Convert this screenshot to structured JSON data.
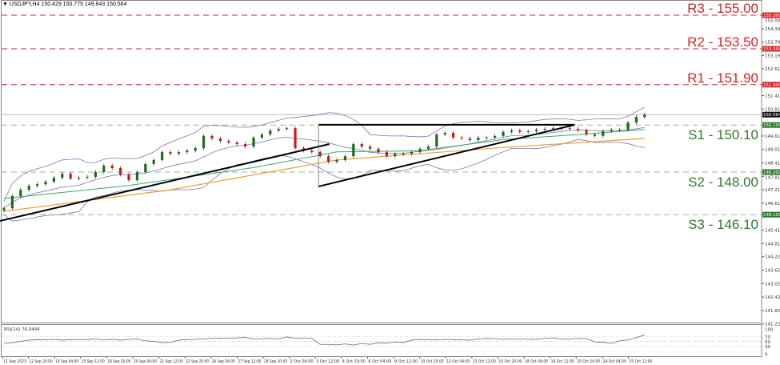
{
  "header": {
    "symbol_label": "▼ USDJPY,H4 150.429 150.775 149.843 150.564"
  },
  "chart_data": {
    "type": "candlestick",
    "symbol": "USDJPY",
    "timeframe": "H4",
    "ohlc_last": {
      "open": 150.429,
      "high": 150.775,
      "low": 149.843,
      "close": 150.564
    },
    "ylim": [
      140.9,
      155.7
    ],
    "y_ticks": [
      "155.000",
      "154.395",
      "153.795",
      "153.195",
      "152.610",
      "151.410",
      "150.810",
      "149.610",
      "149.010",
      "148.410",
      "147.810",
      "147.210",
      "146.610",
      "145.410",
      "144.810",
      "144.225",
      "143.625",
      "143.025",
      "142.425",
      "141.825",
      "141.225"
    ],
    "x_ticks": [
      "11 Sep 2023",
      "12 Sep 20:00",
      "14 Sep 04:00",
      "15 Sep 12:00",
      "18 Sep 20:00",
      "20 Sep 04:00",
      "21 Sep 12:00",
      "22 Sep 20:00",
      "26 Sep 04:00",
      "27 Sep 12:00",
      "28 Sep 20:00",
      "2 Oct 04:00",
      "3 Oct 12:00",
      "4 Oct 20:00",
      "6 Oct 04:00",
      "9 Oct 12:00",
      "10 Oct 20:00",
      "12 Oct 04:00",
      "13 Oct 12:00",
      "16 Oct 20:00",
      "18 Oct 04:00",
      "19 Oct 12:00",
      "20 Oct 20:00",
      "24 Oct 04:00",
      "25 Oct 12:00"
    ],
    "closes": [
      146.39,
      146.93,
      147.21,
      147.39,
      147.46,
      147.57,
      147.75,
      147.93,
      147.71,
      147.75,
      147.79,
      148.0,
      148.29,
      148.18,
      147.89,
      147.64,
      148.0,
      148.36,
      148.54,
      148.89,
      148.82,
      148.89,
      148.96,
      149.07,
      149.61,
      149.5,
      149.39,
      149.32,
      149.25,
      149.14,
      149.54,
      149.68,
      149.86,
      149.93,
      149.96,
      149.07,
      148.96,
      148.89,
      148.71,
      148.46,
      148.54,
      148.71,
      149.25,
      149.14,
      149.04,
      148.89,
      148.71,
      148.82,
      148.82,
      148.89,
      149.04,
      149.14,
      149.68,
      149.75,
      149.54,
      149.5,
      149.43,
      149.54,
      149.54,
      149.61,
      149.79,
      149.86,
      149.79,
      149.82,
      149.89,
      149.93,
      149.96,
      149.96,
      149.93,
      149.86,
      149.68,
      149.61,
      149.82,
      149.89,
      149.89,
      150.21,
      150.46,
      150.564
    ],
    "ma_green": [
      [
        0,
        146.82
      ],
      [
        15,
        147.4
      ],
      [
        30,
        148.2
      ],
      [
        40,
        148.9
      ],
      [
        50,
        148.95
      ],
      [
        60,
        149.45
      ],
      [
        70,
        149.7
      ],
      [
        77,
        149.9
      ]
    ],
    "ma_orange": [
      [
        0,
        146.25
      ],
      [
        20,
        147.21
      ],
      [
        40,
        148.54
      ],
      [
        60,
        149.1
      ],
      [
        77,
        149.5
      ]
    ],
    "trendlines": [
      {
        "from": [
          -0.5,
          145.82
        ],
        "to": [
          39.1,
          149.25
        ]
      },
      {
        "from": [
          37.8,
          150.11
        ],
        "to": [
          68.6,
          150.11
        ]
      },
      {
        "from": [
          37.8,
          150.11
        ],
        "to": [
          37.8,
          147.36
        ]
      },
      {
        "from": [
          37.8,
          147.36
        ],
        "to": [
          68.6,
          150.11
        ]
      }
    ],
    "levels": [
      {
        "name": "R3",
        "value": 155.0,
        "label": "R3 - 155.00",
        "tag": "155.000",
        "kind": "resistance"
      },
      {
        "name": "R2",
        "value": 153.5,
        "label": "R2 - 153.50",
        "tag": "153.500",
        "kind": "resistance"
      },
      {
        "name": "R1",
        "value": 151.9,
        "label": "R1 - 151.90",
        "tag": "151.900",
        "kind": "resistance"
      },
      {
        "name": "S1",
        "value": 150.1,
        "label": "S1 - 150.10",
        "tag": "150.100",
        "kind": "support"
      },
      {
        "name": "S2",
        "value": 148.0,
        "label": "S2 - 148.00",
        "tag": "148.000",
        "kind": "support"
      },
      {
        "name": "S3",
        "value": 146.1,
        "label": "S3 - 146.10",
        "tag": "146.100",
        "kind": "support"
      }
    ],
    "current_price": {
      "value": 150.564,
      "tag": "150.564"
    },
    "rsi": {
      "label": "RSI(14) 76.0484",
      "ticks": [
        "100",
        "70",
        "50",
        "30",
        "0"
      ],
      "tick_values": [
        100,
        70,
        50,
        30,
        0
      ],
      "values": [
        42,
        45,
        50,
        55,
        57,
        56,
        58,
        55,
        57,
        58,
        57,
        60,
        56,
        58,
        55,
        58,
        60,
        52,
        50,
        45,
        46,
        55,
        57,
        58,
        60,
        62,
        63,
        62,
        64,
        66,
        60,
        61,
        62,
        60,
        68,
        62,
        64,
        62,
        38,
        38,
        36,
        40,
        35,
        42,
        38,
        45,
        43,
        48,
        45,
        55,
        58,
        57,
        56,
        58,
        57,
        56,
        55,
        60,
        62,
        61,
        58,
        60,
        60,
        58,
        59,
        62,
        64,
        60,
        60,
        62,
        61,
        48,
        47,
        42,
        52,
        56,
        65,
        76
      ]
    },
    "colors": {
      "bull": "#1d6b1d",
      "bear": "#d01818",
      "resistance": "#d8232a",
      "support": "#2d7a2d",
      "bollinger": "#7777bb",
      "ma_green": "#3aa86a",
      "ma_orange": "#f0a030",
      "trendline": "#000000"
    }
  }
}
